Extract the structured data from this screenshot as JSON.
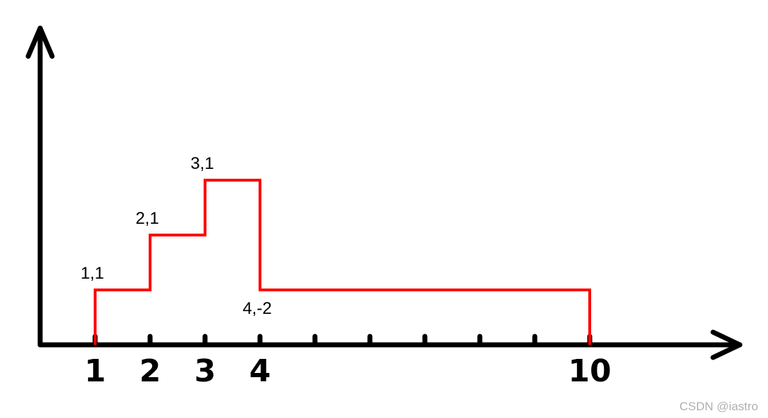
{
  "chart_data": {
    "type": "line",
    "step": true,
    "x_ticks": [
      1,
      2,
      3,
      4,
      5,
      6,
      7,
      8,
      9,
      10
    ],
    "x_tick_labels": [
      {
        "x": 1,
        "text": "1"
      },
      {
        "x": 2,
        "text": "2"
      },
      {
        "x": 3,
        "text": "3"
      },
      {
        "x": 4,
        "text": "4"
      },
      {
        "x": 10,
        "text": "10"
      }
    ],
    "points": [
      {
        "x": 1,
        "delta": 1,
        "label": "1,1"
      },
      {
        "x": 2,
        "delta": 1,
        "label": "2,1"
      },
      {
        "x": 3,
        "delta": 1,
        "label": "3,1"
      },
      {
        "x": 4,
        "delta": -2,
        "label": "4,-2"
      }
    ],
    "step_series": {
      "x": [
        1,
        2,
        3,
        4,
        10
      ],
      "y": [
        1,
        2,
        3,
        1,
        0
      ]
    },
    "xlim": [
      0,
      12.5
    ],
    "ylim": [
      0,
      6
    ],
    "line_color": "#ff0000",
    "axis_color": "#000000"
  },
  "watermark": "CSDN @iastro"
}
